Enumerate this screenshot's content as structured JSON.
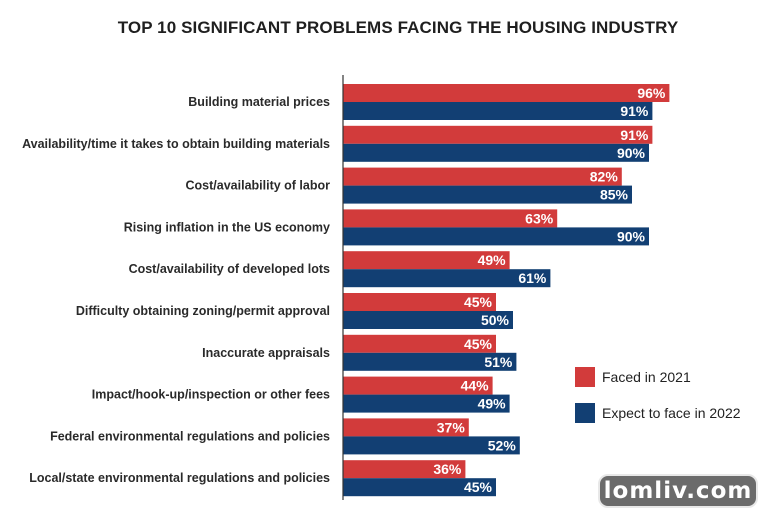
{
  "chart_data": {
    "type": "bar",
    "orientation": "horizontal",
    "title": "TOP 10 SIGNIFICANT PROBLEMS FACING THE HOUSING INDUSTRY",
    "categories": [
      "Building material prices",
      "Availability/time it takes to obtain building materials",
      "Cost/availability of labor",
      "Rising inflation in the US economy",
      "Cost/availability of developed lots",
      "Difficulty obtaining zoning/permit approval",
      "Inaccurate appraisals",
      "Impact/hook-up/inspection or other fees",
      "Federal environmental regulations and policies",
      "Local/state environmental regulations and policies"
    ],
    "series": [
      {
        "name": "Faced in 2021",
        "color": "#d23b3b",
        "values": [
          96,
          91,
          82,
          63,
          49,
          45,
          45,
          44,
          37,
          36
        ]
      },
      {
        "name": "Expect to face in 2022",
        "color": "#123f73",
        "values": [
          91,
          90,
          85,
          90,
          61,
          50,
          51,
          49,
          52,
          45
        ]
      }
    ],
    "xlim": [
      0,
      100
    ],
    "value_suffix": "%",
    "grid": false,
    "legend": "right"
  },
  "watermark": "lomliv.com"
}
